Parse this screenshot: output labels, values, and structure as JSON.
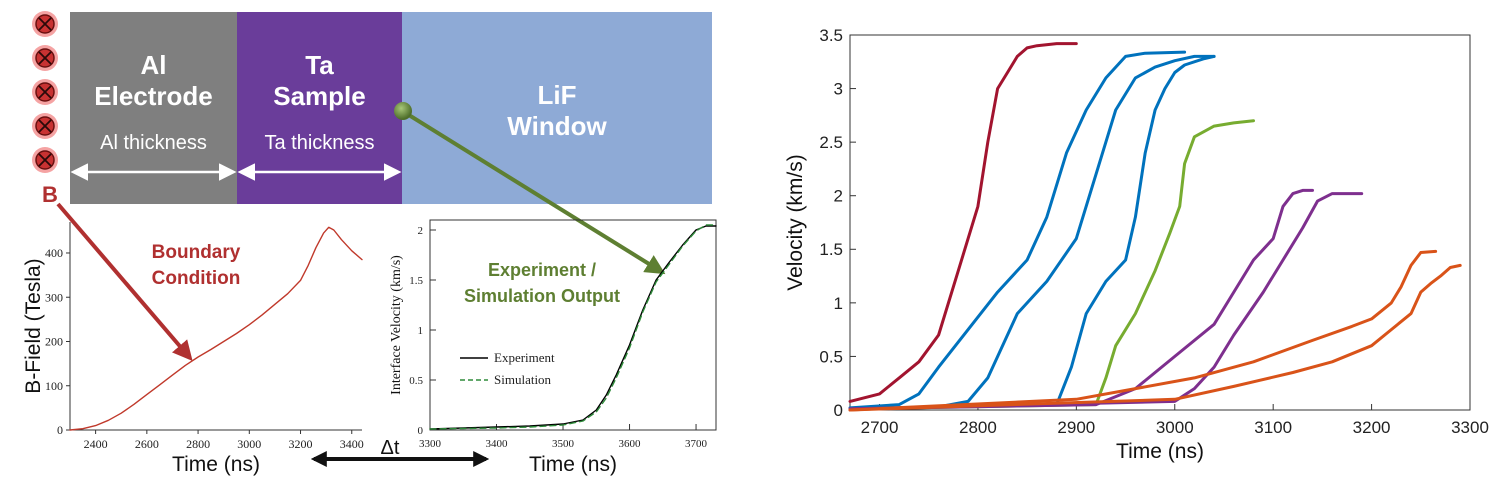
{
  "schematic": {
    "layers": [
      {
        "name": "Al",
        "sub": "Electrode",
        "thickness_label": "Al thickness",
        "color": "#7f7f7f"
      },
      {
        "name": "Ta",
        "sub": "Sample",
        "thickness_label": "Ta thickness",
        "color": "#6a3d9a"
      },
      {
        "name": "LiF",
        "sub": "Window",
        "color": "#8eaad6"
      }
    ],
    "field_symbol_count": 5,
    "field_label": "B",
    "boundary_label_1": "Boundary",
    "boundary_label_2": "Condition",
    "output_label_1": "Experiment /",
    "output_label_2": "Simulation Output",
    "delta_label": "Δt",
    "colors": {
      "red": "#b03030",
      "green": "#5e7f32",
      "white": "#ffffff"
    }
  },
  "chart_data": [
    {
      "type": "line",
      "id": "bfield",
      "title": "",
      "xlabel": "Time (ns)",
      "ylabel": "B-Field (Tesla)",
      "xlim": [
        2300,
        3440
      ],
      "ylim": [
        0,
        470
      ],
      "xticks": [
        2400,
        2600,
        2800,
        3000,
        3200,
        3400
      ],
      "yticks": [
        0,
        100,
        200,
        300,
        400
      ],
      "series": [
        {
          "name": "B-Field",
          "color": "#c0392b",
          "x": [
            2300,
            2350,
            2400,
            2450,
            2500,
            2550,
            2600,
            2650,
            2700,
            2750,
            2800,
            2850,
            2900,
            2950,
            3000,
            3050,
            3100,
            3150,
            3200,
            3230,
            3260,
            3290,
            3310,
            3330,
            3360,
            3400,
            3440
          ],
          "y": [
            0,
            3,
            10,
            22,
            38,
            58,
            80,
            102,
            124,
            146,
            165,
            182,
            200,
            218,
            238,
            260,
            284,
            308,
            338,
            372,
            412,
            445,
            458,
            452,
            430,
            405,
            385
          ]
        }
      ]
    },
    {
      "type": "line",
      "id": "interface",
      "title": "",
      "xlabel": "Time (ns)",
      "ylabel": "Interface Velocity (km/s)",
      "xlim": [
        3300,
        3730
      ],
      "ylim": [
        0,
        2.1
      ],
      "xticks": [
        3300,
        3400,
        3500,
        3600,
        3700
      ],
      "yticks": [
        0,
        0.5,
        1,
        1.5,
        2
      ],
      "legend": "center-left",
      "series": [
        {
          "name": "Experiment",
          "color": "#000000",
          "dash": "",
          "x": [
            3300,
            3350,
            3400,
            3450,
            3500,
            3530,
            3550,
            3565,
            3580,
            3600,
            3620,
            3640,
            3660,
            3680,
            3700,
            3715,
            3730
          ],
          "y": [
            0.01,
            0.02,
            0.03,
            0.04,
            0.06,
            0.1,
            0.2,
            0.35,
            0.55,
            0.85,
            1.2,
            1.5,
            1.68,
            1.85,
            2.0,
            2.04,
            2.04
          ]
        },
        {
          "name": "Simulation",
          "color": "#2e8b3a",
          "dash": "6,4",
          "x": [
            3300,
            3350,
            3400,
            3450,
            3500,
            3530,
            3550,
            3565,
            3580,
            3600,
            3620,
            3640,
            3660,
            3680,
            3700,
            3715,
            3730
          ],
          "y": [
            0.01,
            0.015,
            0.02,
            0.03,
            0.05,
            0.09,
            0.18,
            0.32,
            0.52,
            0.82,
            1.18,
            1.48,
            1.66,
            1.84,
            1.99,
            2.05,
            2.05
          ]
        }
      ]
    },
    {
      "type": "line",
      "id": "velocity",
      "title": "",
      "xlabel": "Time (ns)",
      "ylabel": "Velocity (km/s)",
      "xlim": [
        2670,
        3300
      ],
      "ylim": [
        0,
        3.5
      ],
      "xticks": [
        2700,
        2800,
        2900,
        3000,
        3100,
        3200,
        3300
      ],
      "yticks": [
        0,
        0.5,
        1,
        1.5,
        2,
        2.5,
        3,
        3.5
      ],
      "series": [
        {
          "name": "s1",
          "color": "#a2142f",
          "x": [
            2670,
            2700,
            2720,
            2740,
            2760,
            2780,
            2800,
            2810,
            2820,
            2830,
            2840,
            2850,
            2860,
            2880,
            2900
          ],
          "y": [
            0.08,
            0.15,
            0.3,
            0.45,
            0.7,
            1.3,
            1.9,
            2.5,
            3.0,
            3.15,
            3.3,
            3.38,
            3.4,
            3.42,
            3.42
          ]
        },
        {
          "name": "s2",
          "color": "#0072bd",
          "x": [
            2670,
            2720,
            2740,
            2760,
            2790,
            2820,
            2850,
            2870,
            2890,
            2910,
            2930,
            2950,
            2970,
            3010
          ],
          "y": [
            0.02,
            0.05,
            0.15,
            0.4,
            0.75,
            1.1,
            1.4,
            1.8,
            2.4,
            2.8,
            3.1,
            3.3,
            3.33,
            3.34
          ]
        },
        {
          "name": "s3",
          "color": "#0072bd",
          "x": [
            2670,
            2760,
            2790,
            2810,
            2840,
            2870,
            2900,
            2920,
            2940,
            2960,
            2980,
            3000,
            3020,
            3040
          ],
          "y": [
            0.01,
            0.03,
            0.08,
            0.3,
            0.9,
            1.2,
            1.6,
            2.2,
            2.8,
            3.1,
            3.2,
            3.26,
            3.3,
            3.3
          ]
        },
        {
          "name": "s4",
          "color": "#0072bd",
          "x": [
            2670,
            2880,
            2895,
            2910,
            2930,
            2950,
            2960,
            2970,
            2980,
            2990,
            3000,
            3010,
            3030,
            3040
          ],
          "y": [
            0.01,
            0.05,
            0.4,
            0.9,
            1.2,
            1.4,
            1.8,
            2.4,
            2.8,
            3.0,
            3.15,
            3.22,
            3.28,
            3.3
          ]
        },
        {
          "name": "s5",
          "color": "#77ac30",
          "x": [
            2670,
            2920,
            2930,
            2940,
            2960,
            2980,
            2995,
            3005,
            3010,
            3020,
            3040,
            3060,
            3080
          ],
          "y": [
            0.01,
            0.05,
            0.3,
            0.6,
            0.9,
            1.3,
            1.65,
            1.9,
            2.3,
            2.55,
            2.65,
            2.68,
            2.7
          ]
        },
        {
          "name": "s6",
          "color": "#7e2f8e",
          "x": [
            2670,
            2920,
            2960,
            3000,
            3040,
            3060,
            3080,
            3100,
            3110,
            3120,
            3130,
            3140
          ],
          "y": [
            0.01,
            0.05,
            0.2,
            0.5,
            0.8,
            1.1,
            1.4,
            1.6,
            1.9,
            2.02,
            2.05,
            2.05
          ]
        },
        {
          "name": "s7",
          "color": "#7e2f8e",
          "x": [
            2670,
            3000,
            3020,
            3040,
            3060,
            3090,
            3110,
            3130,
            3145,
            3160,
            3175,
            3190
          ],
          "y": [
            0.01,
            0.08,
            0.2,
            0.4,
            0.7,
            1.1,
            1.4,
            1.7,
            1.95,
            2.02,
            2.02,
            2.02
          ]
        },
        {
          "name": "s8",
          "color": "#d95319",
          "x": [
            2670,
            2900,
            2960,
            3020,
            3080,
            3140,
            3180,
            3200,
            3220,
            3230,
            3240,
            3250,
            3265
          ],
          "y": [
            0.0,
            0.1,
            0.2,
            0.3,
            0.45,
            0.65,
            0.78,
            0.85,
            1.0,
            1.15,
            1.35,
            1.47,
            1.48
          ]
        },
        {
          "name": "s9",
          "color": "#d95319",
          "x": [
            2670,
            3000,
            3060,
            3120,
            3160,
            3200,
            3220,
            3240,
            3250,
            3260,
            3270,
            3280,
            3290
          ],
          "y": [
            0.0,
            0.1,
            0.22,
            0.35,
            0.45,
            0.6,
            0.75,
            0.9,
            1.1,
            1.18,
            1.25,
            1.33,
            1.35
          ]
        }
      ]
    }
  ]
}
